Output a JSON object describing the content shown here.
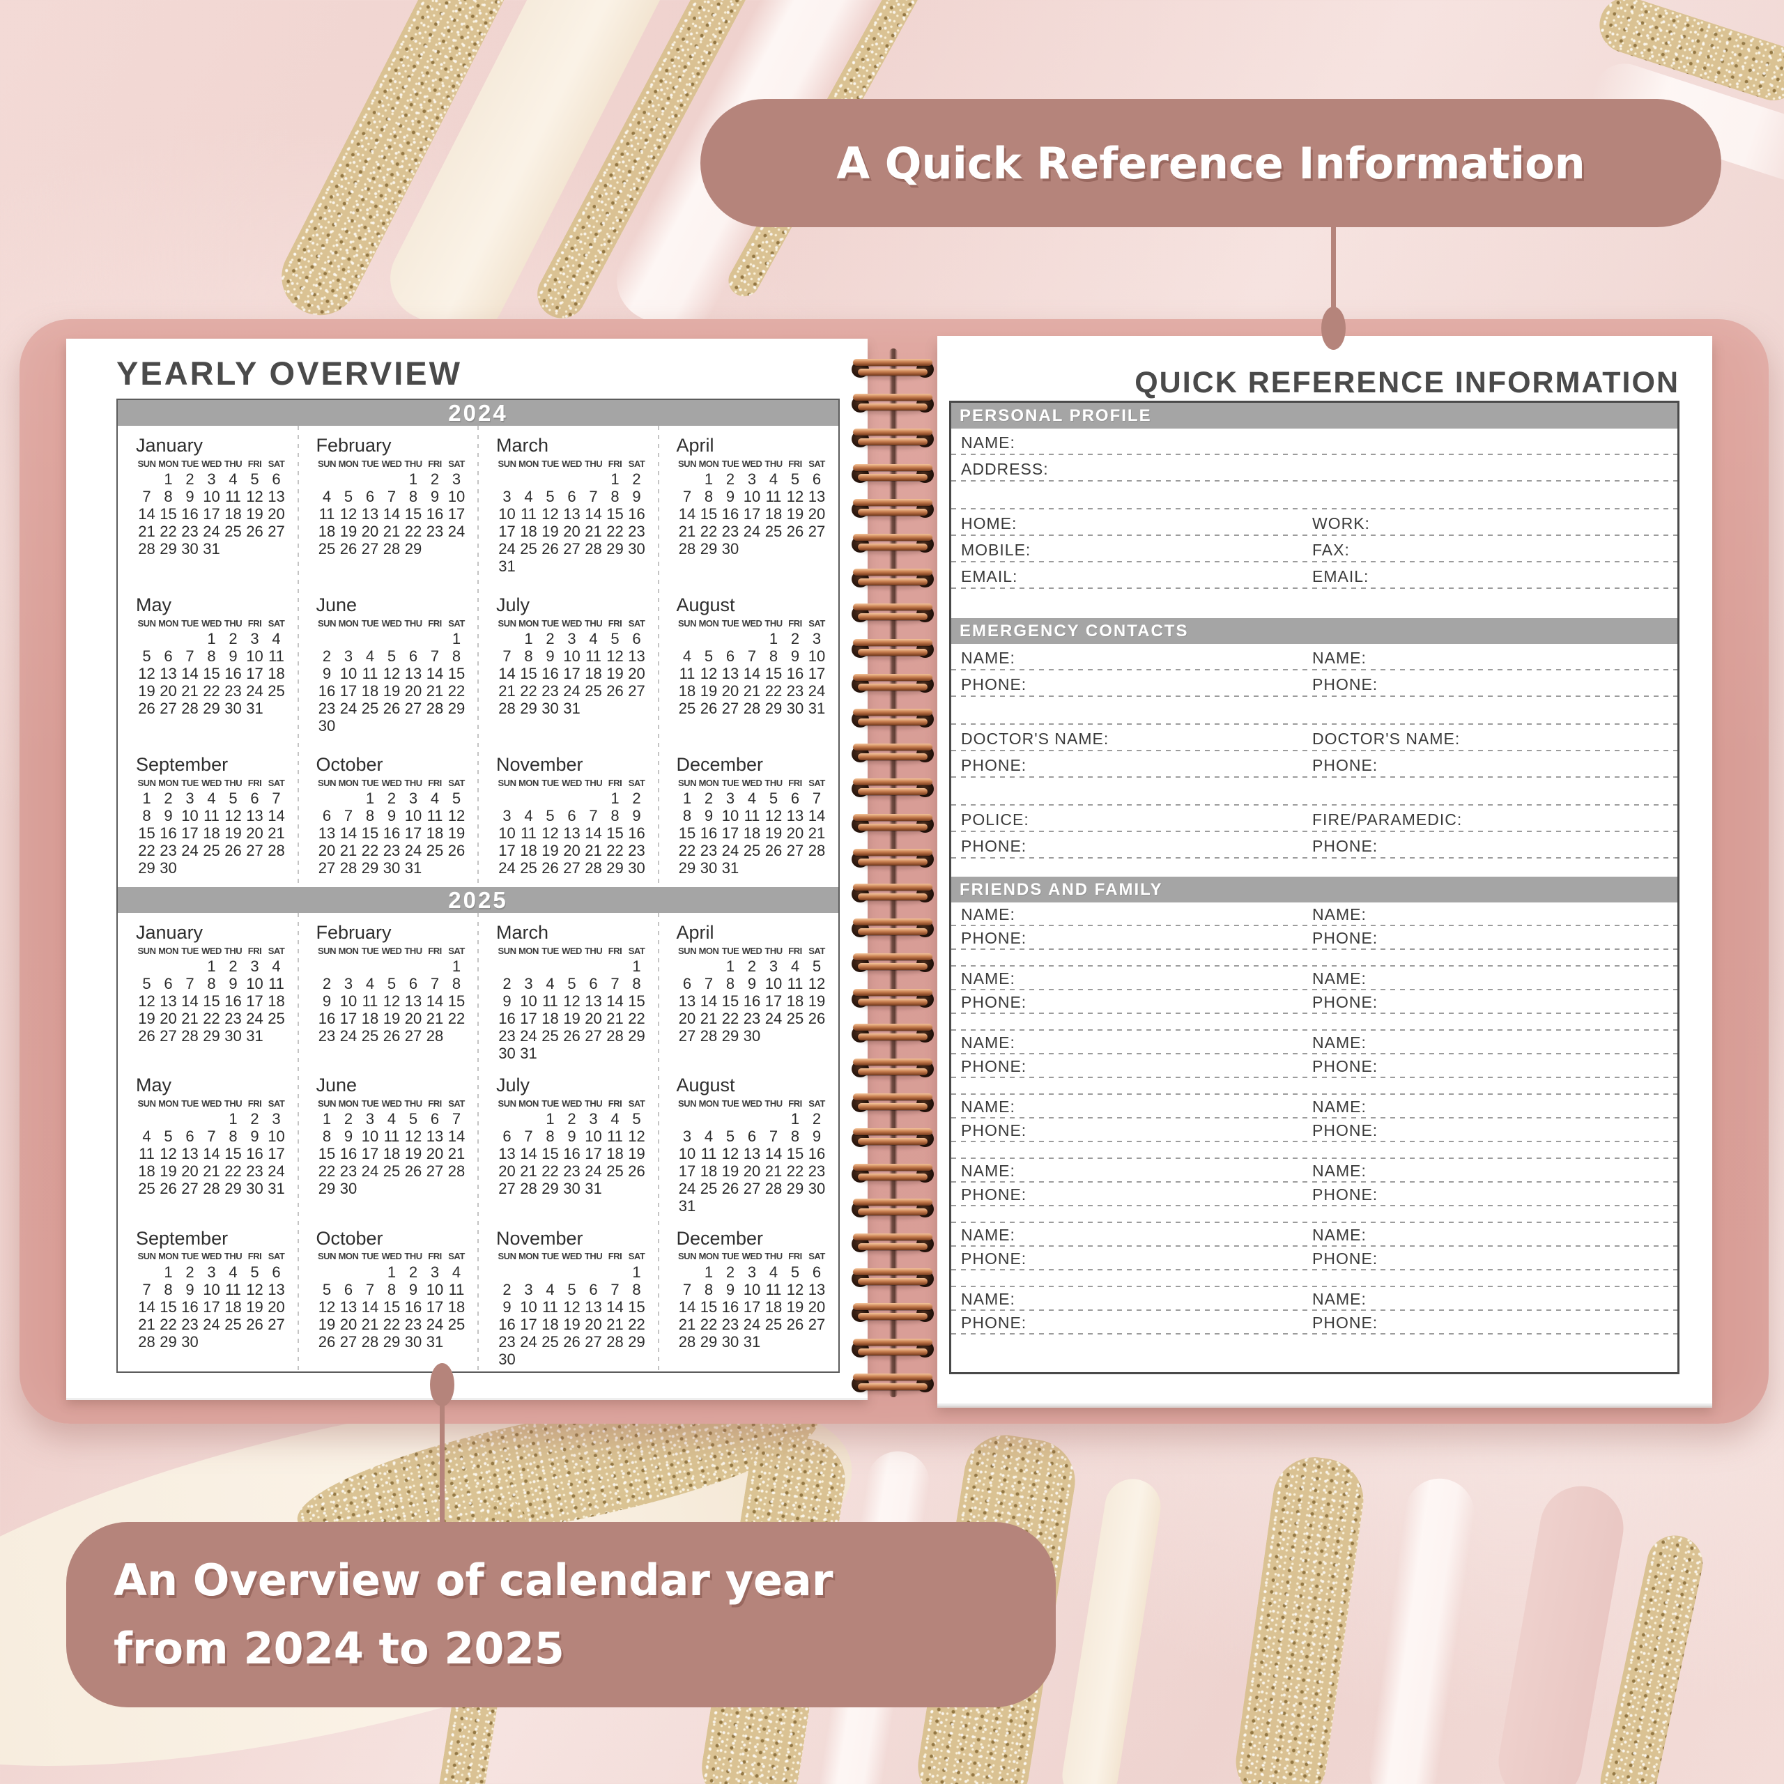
{
  "colors": {
    "rose": "#b5847b",
    "cover_pink": "#d99e97",
    "bar_gray": "#a5a5a5",
    "heading_gray": "#4a4a4a",
    "text_dark": "#3a3a3a",
    "gold": "#d9c190",
    "copper": "#c87f50",
    "page_white": "#ffffff"
  },
  "callouts": {
    "top": {
      "text": "A Quick Reference Information"
    },
    "bottom": {
      "line1": "An Overview of calendar year",
      "line2": "from 2024 to 2025"
    }
  },
  "left_page": {
    "title": "YEARLY OVERVIEW",
    "weekdays": [
      "SUN",
      "MON",
      "TUE",
      "WED",
      "THU",
      "FRI",
      "SAT"
    ],
    "years": [
      {
        "year": "2024",
        "months": [
          {
            "name": "January",
            "start": 1,
            "days": 31
          },
          {
            "name": "February",
            "start": 4,
            "days": 29
          },
          {
            "name": "March",
            "start": 5,
            "days": 31
          },
          {
            "name": "April",
            "start": 1,
            "days": 30
          },
          {
            "name": "May",
            "start": 3,
            "days": 31
          },
          {
            "name": "June",
            "start": 6,
            "days": 30
          },
          {
            "name": "July",
            "start": 1,
            "days": 31
          },
          {
            "name": "August",
            "start": 4,
            "days": 31
          },
          {
            "name": "September",
            "start": 0,
            "days": 30
          },
          {
            "name": "October",
            "start": 2,
            "days": 31
          },
          {
            "name": "November",
            "start": 5,
            "days": 30
          },
          {
            "name": "December",
            "start": 0,
            "days": 31
          }
        ]
      },
      {
        "year": "2025",
        "months": [
          {
            "name": "January",
            "start": 3,
            "days": 31
          },
          {
            "name": "February",
            "start": 6,
            "days": 28
          },
          {
            "name": "March",
            "start": 6,
            "days": 31
          },
          {
            "name": "April",
            "start": 2,
            "days": 30
          },
          {
            "name": "May",
            "start": 4,
            "days": 31
          },
          {
            "name": "June",
            "start": 0,
            "days": 30
          },
          {
            "name": "July",
            "start": 2,
            "days": 31
          },
          {
            "name": "August",
            "start": 5,
            "days": 31
          },
          {
            "name": "September",
            "start": 1,
            "days": 30
          },
          {
            "name": "October",
            "start": 3,
            "days": 31
          },
          {
            "name": "November",
            "start": 6,
            "days": 30
          },
          {
            "name": "December",
            "start": 1,
            "days": 31
          }
        ]
      }
    ]
  },
  "right_page": {
    "title": "QUICK REFERENCE INFORMATION",
    "sections": [
      {
        "title": "PERSONAL PROFILE",
        "rows": [
          {
            "t": "single",
            "l": "NAME:"
          },
          {
            "t": "single",
            "l": "ADDRESS:"
          },
          {
            "t": "blank"
          },
          {
            "t": "double",
            "l": "HOME:",
            "r": "WORK:"
          },
          {
            "t": "double",
            "l": "MOBILE:",
            "r": "FAX:"
          },
          {
            "t": "double",
            "l": "EMAIL:",
            "r": "EMAIL:"
          },
          {
            "t": "gap"
          }
        ]
      },
      {
        "title": "EMERGENCY CONTACTS",
        "rows": [
          {
            "t": "double",
            "l": "NAME:",
            "r": "NAME:"
          },
          {
            "t": "double",
            "l": "PHONE:",
            "r": "PHONE:"
          },
          {
            "t": "blank"
          },
          {
            "t": "double",
            "l": "DOCTOR'S NAME:",
            "r": "DOCTOR'S NAME:"
          },
          {
            "t": "double",
            "l": "PHONE:",
            "r": "PHONE:"
          },
          {
            "t": "blank"
          },
          {
            "t": "double",
            "l": "POLICE:",
            "r": "FIRE/PARAMEDIC:"
          },
          {
            "t": "double",
            "l": "PHONE:",
            "r": "PHONE:"
          },
          {
            "t": "gap"
          }
        ]
      },
      {
        "title": "FRIENDS AND FAMILY",
        "rows": [
          {
            "t": "double",
            "l": "NAME:",
            "r": "NAME:"
          },
          {
            "t": "double",
            "l": "PHONE:",
            "r": "PHONE:"
          },
          {
            "t": "blank"
          },
          {
            "t": "double",
            "l": "NAME:",
            "r": "NAME:"
          },
          {
            "t": "double",
            "l": "PHONE:",
            "r": "PHONE:"
          },
          {
            "t": "blank"
          },
          {
            "t": "double",
            "l": "NAME:",
            "r": "NAME:"
          },
          {
            "t": "double",
            "l": "PHONE:",
            "r": "PHONE:"
          },
          {
            "t": "blank"
          },
          {
            "t": "double",
            "l": "NAME:",
            "r": "NAME:"
          },
          {
            "t": "double",
            "l": "PHONE:",
            "r": "PHONE:"
          },
          {
            "t": "blank"
          },
          {
            "t": "double",
            "l": "NAME:",
            "r": "NAME:"
          },
          {
            "t": "double",
            "l": "PHONE:",
            "r": "PHONE:"
          },
          {
            "t": "blank"
          },
          {
            "t": "double",
            "l": "NAME:",
            "r": "NAME:"
          },
          {
            "t": "double",
            "l": "PHONE:",
            "r": "PHONE:"
          },
          {
            "t": "blank"
          },
          {
            "t": "double",
            "l": "NAME:",
            "r": "NAME:"
          },
          {
            "t": "double",
            "l": "PHONE:",
            "r": "PHONE:"
          }
        ]
      }
    ]
  }
}
